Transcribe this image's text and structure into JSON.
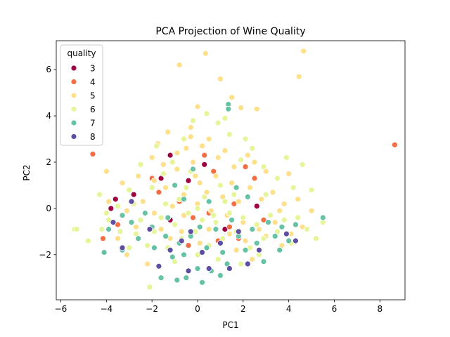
{
  "chart_data": {
    "type": "scatter",
    "title": "PCA Projection of Wine Quality",
    "xlabel": "PC1",
    "ylabel": "PC2",
    "xlim": [
      -6.2,
      9.1
    ],
    "ylim": [
      -3.95,
      7.25
    ],
    "xticks": [
      -6,
      -4,
      -2,
      0,
      2,
      4,
      6,
      8
    ],
    "yticks": [
      -2,
      0,
      2,
      4,
      6
    ],
    "grid": false,
    "legend": {
      "title": "quality",
      "placement": "top-left"
    },
    "series": [
      {
        "name": "3",
        "color": "#9e0142",
        "points": [
          [
            -3.6,
            0.4
          ],
          [
            -1.6,
            1.3
          ],
          [
            -1.2,
            2.3
          ],
          [
            -0.4,
            1.2
          ],
          [
            0.3,
            1.9
          ],
          [
            2.6,
            0.1
          ],
          [
            -1.2,
            -0.5
          ],
          [
            -3.8,
            0.0
          ],
          [
            1.2,
            -0.9
          ],
          [
            -2.8,
            0.6
          ]
        ]
      },
      {
        "name": "4",
        "color": "#f46d43",
        "points": [
          [
            8.65,
            2.75
          ],
          [
            -4.6,
            2.35
          ],
          [
            -4.15,
            -1.3
          ],
          [
            -2.0,
            1.3
          ],
          [
            1.4,
            -0.8
          ],
          [
            -0.8,
            0.3
          ],
          [
            0.3,
            2.3
          ],
          [
            0.7,
            1.6
          ],
          [
            0.9,
            -1.4
          ],
          [
            2.5,
            1.3
          ],
          [
            2.1,
            1.8
          ],
          [
            -2.9,
            -0.6
          ],
          [
            -0.4,
            -1.6
          ],
          [
            1.6,
            0.2
          ],
          [
            -3.5,
            -0.7
          ],
          [
            0.5,
            -0.2
          ],
          [
            -1.7,
            0.7
          ],
          [
            2.9,
            -0.5
          ],
          [
            -0.2,
            -0.4
          ],
          [
            1.8,
            -1.3
          ]
        ]
      },
      {
        "name": "5",
        "color": "#fee08b",
        "points": [
          [
            4.65,
            6.8
          ],
          [
            4.45,
            5.7
          ],
          [
            0.35,
            6.7
          ],
          [
            -0.8,
            6.2
          ],
          [
            1.0,
            5.6
          ],
          [
            1.5,
            4.8
          ],
          [
            1.9,
            4.35
          ],
          [
            2.6,
            4.3
          ],
          [
            0.0,
            4.4
          ],
          [
            -1.3,
            3.3
          ],
          [
            -0.3,
            3.5
          ],
          [
            -1.75,
            2.8
          ],
          [
            -0.5,
            2.6
          ],
          [
            0.5,
            3.0
          ],
          [
            1.2,
            2.5
          ],
          [
            2.2,
            2.3
          ],
          [
            3.0,
            1.6
          ],
          [
            4.0,
            1.5
          ],
          [
            -4.0,
            1.6
          ],
          [
            -3.3,
            1.1
          ],
          [
            -2.6,
            1.4
          ],
          [
            -1.9,
            1.2
          ],
          [
            -1.4,
            0.9
          ],
          [
            -0.9,
            1.7
          ],
          [
            -0.6,
            0.6
          ],
          [
            -0.2,
            2.0
          ],
          [
            0.1,
            1.1
          ],
          [
            0.4,
            0.7
          ],
          [
            0.8,
            1.4
          ],
          [
            1.1,
            0.5
          ],
          [
            1.5,
            1.1
          ],
          [
            1.8,
            0.3
          ],
          [
            2.3,
            0.9
          ],
          [
            2.8,
            0.4
          ],
          [
            3.3,
            0.7
          ],
          [
            3.8,
            0.2
          ],
          [
            4.4,
            0.4
          ],
          [
            5.0,
            -0.1
          ],
          [
            -3.9,
            0.3
          ],
          [
            -3.1,
            -0.1
          ],
          [
            -2.4,
            0.3
          ],
          [
            -1.9,
            -0.2
          ],
          [
            -1.1,
            0.1
          ],
          [
            -0.6,
            -0.3
          ],
          [
            0.0,
            0.2
          ],
          [
            0.6,
            -0.1
          ],
          [
            1.3,
            -0.3
          ],
          [
            2.0,
            -0.6
          ],
          [
            2.7,
            -0.9
          ],
          [
            3.4,
            -0.6
          ],
          [
            4.1,
            -1.1
          ],
          [
            4.6,
            -0.8
          ],
          [
            -2.2,
            -2.4
          ],
          [
            -0.1,
            1.4
          ],
          [
            0.9,
            2.2
          ],
          [
            -0.9,
            2.4
          ],
          [
            -0.3,
            3.1
          ],
          [
            0.2,
            2.7
          ],
          [
            1.6,
            1.8
          ],
          [
            -2.0,
            2.2
          ],
          [
            -1.5,
            1.9
          ],
          [
            2.5,
            2.0
          ],
          [
            3.6,
            -0.1
          ],
          [
            -3.5,
            -1.3
          ],
          [
            -2.7,
            -0.8
          ],
          [
            -1.6,
            -0.9
          ],
          [
            -0.7,
            -1.0
          ],
          [
            0.5,
            -0.9
          ],
          [
            1.4,
            -1.1
          ],
          [
            2.1,
            -1.4
          ],
          [
            3.0,
            -1.2
          ],
          [
            3.7,
            -1.6
          ],
          [
            -1.2,
            -1.3
          ],
          [
            0.1,
            -1.5
          ],
          [
            1.7,
            -1.8
          ],
          [
            2.4,
            -2.2
          ],
          [
            -3.1,
            -2.0
          ]
        ]
      },
      {
        "name": "6",
        "color": "#e6f598",
        "points": [
          [
            -5.4,
            -0.9
          ],
          [
            -5.3,
            -0.9
          ],
          [
            -4.8,
            -1.4
          ],
          [
            -4.2,
            -0.9
          ],
          [
            -3.9,
            -0.5
          ],
          [
            -3.4,
            -1.0
          ],
          [
            -3.0,
            -1.7
          ],
          [
            -2.7,
            -1.1
          ],
          [
            -2.5,
            -0.5
          ],
          [
            -2.2,
            -1.6
          ],
          [
            -1.9,
            -1.0
          ],
          [
            -1.6,
            -0.4
          ],
          [
            -1.3,
            -1.7
          ],
          [
            -1.0,
            -0.7
          ],
          [
            -0.7,
            -1.3
          ],
          [
            -0.4,
            -0.2
          ],
          [
            -0.1,
            -1.0
          ],
          [
            0.2,
            -0.5
          ],
          [
            0.5,
            -1.6
          ],
          [
            0.8,
            -0.6
          ],
          [
            1.1,
            -1.3
          ],
          [
            1.4,
            -0.2
          ],
          [
            1.7,
            -1.0
          ],
          [
            2.0,
            -0.4
          ],
          [
            2.3,
            -1.7
          ],
          [
            2.6,
            -0.7
          ],
          [
            2.9,
            -1.3
          ],
          [
            3.2,
            -0.3
          ],
          [
            3.5,
            -1.0
          ],
          [
            3.8,
            -0.5
          ],
          [
            4.1,
            -1.5
          ],
          [
            4.4,
            -0.4
          ],
          [
            4.8,
            -0.9
          ],
          [
            5.2,
            -1.3
          ],
          [
            5.5,
            -0.6
          ],
          [
            5.0,
            0.8
          ],
          [
            4.6,
            1.9
          ],
          [
            3.9,
            2.2
          ],
          [
            3.5,
            1.3
          ],
          [
            2.9,
            1.8
          ],
          [
            2.4,
            2.6
          ],
          [
            1.9,
            2.1
          ],
          [
            1.4,
            3.2
          ],
          [
            0.9,
            3.7
          ],
          [
            0.4,
            4.1
          ],
          [
            -0.2,
            3.8
          ],
          [
            -0.6,
            3.0
          ],
          [
            -1.1,
            2.0
          ],
          [
            -1.5,
            1.5
          ],
          [
            -2.0,
            0.9
          ],
          [
            -2.5,
            1.9
          ],
          [
            -3.0,
            0.8
          ],
          [
            -3.5,
            0.1
          ],
          [
            -4.3,
            0.6
          ],
          [
            -4.0,
            -0.2
          ],
          [
            -2.1,
            -3.4
          ],
          [
            -1.0,
            -2.3
          ],
          [
            0.0,
            -2.0
          ],
          [
            0.9,
            -2.2
          ],
          [
            1.9,
            -2.4
          ],
          [
            2.7,
            -2.0
          ],
          [
            -0.5,
            0.9
          ],
          [
            0.3,
            0.5
          ],
          [
            1.0,
            1.0
          ],
          [
            1.6,
            0.6
          ],
          [
            -0.8,
            0.4
          ],
          [
            -1.4,
            0.2
          ],
          [
            0.0,
            0.0
          ],
          [
            0.7,
            -0.3
          ],
          [
            1.2,
            0.3
          ],
          [
            -2.8,
            0.2
          ],
          [
            -0.3,
            1.6
          ],
          [
            3.0,
            0.6
          ],
          [
            4.2,
            0.9
          ],
          [
            -1.8,
            2.7
          ],
          [
            1.2,
            3.9
          ],
          [
            2.1,
            3.0
          ]
        ]
      },
      {
        "name": "7",
        "color": "#66c2a5",
        "points": [
          [
            1.35,
            4.5
          ],
          [
            1.35,
            4.3
          ],
          [
            5.5,
            -0.4
          ],
          [
            -4.1,
            -1.9
          ],
          [
            -3.9,
            -0.9
          ],
          [
            -3.3,
            -1.8
          ],
          [
            -2.9,
            -0.6
          ],
          [
            -2.6,
            -1.3
          ],
          [
            -2.3,
            -0.2
          ],
          [
            -1.6,
            -3.0
          ],
          [
            -1.9,
            -1.7
          ],
          [
            -1.4,
            -1.2
          ],
          [
            -1.1,
            -2.1
          ],
          [
            -0.8,
            -1.5
          ],
          [
            -0.5,
            -3.0
          ],
          [
            -0.6,
            -2.0
          ],
          [
            -0.3,
            -1.2
          ],
          [
            0.0,
            -2.6
          ],
          [
            0.1,
            -0.8
          ],
          [
            0.4,
            -1.7
          ],
          [
            0.6,
            -2.7
          ],
          [
            0.8,
            -0.9
          ],
          [
            1.1,
            -1.9
          ],
          [
            1.3,
            -2.4
          ],
          [
            1.5,
            -0.5
          ],
          [
            1.8,
            -1.2
          ],
          [
            2.1,
            -1.8
          ],
          [
            2.4,
            -0.9
          ],
          [
            2.6,
            -1.5
          ],
          [
            2.9,
            -2.3
          ],
          [
            3.1,
            -0.6
          ],
          [
            3.4,
            -1.2
          ],
          [
            3.7,
            -0.8
          ],
          [
            4.0,
            -1.4
          ],
          [
            4.3,
            -0.7
          ],
          [
            -0.6,
            0.4
          ],
          [
            0.5,
            0.3
          ],
          [
            1.7,
            0.9
          ],
          [
            -1.0,
            1.0
          ],
          [
            2.2,
            0.5
          ],
          [
            -0.2,
            1.7
          ],
          [
            -0.9,
            -3.1
          ],
          [
            0.2,
            -3.2
          ],
          [
            1.0,
            -2.9
          ],
          [
            -3.3,
            -0.3
          ],
          [
            -2.0,
            -0.8
          ],
          [
            3.6,
            -1.8
          ],
          [
            -1.3,
            -0.4
          ]
        ]
      },
      {
        "name": "8",
        "color": "#5e4fa2",
        "points": [
          [
            -3.7,
            -0.6
          ],
          [
            -3.3,
            -1.7
          ],
          [
            -2.1,
            -0.9
          ],
          [
            -1.7,
            -2.5
          ],
          [
            -1.2,
            -1.8
          ],
          [
            -0.7,
            -1.4
          ],
          [
            -0.4,
            -2.7
          ],
          [
            0.5,
            -2.6
          ],
          [
            1.0,
            -1.5
          ],
          [
            1.8,
            -1.0
          ],
          [
            2.2,
            -2.4
          ],
          [
            2.7,
            -1.8
          ],
          [
            3.9,
            -1.1
          ],
          [
            4.3,
            -1.4
          ],
          [
            -2.9,
            0.3
          ],
          [
            0.2,
            -1.9
          ],
          [
            -0.3,
            -1.0
          ],
          [
            1.4,
            -2.6
          ]
        ]
      }
    ]
  }
}
